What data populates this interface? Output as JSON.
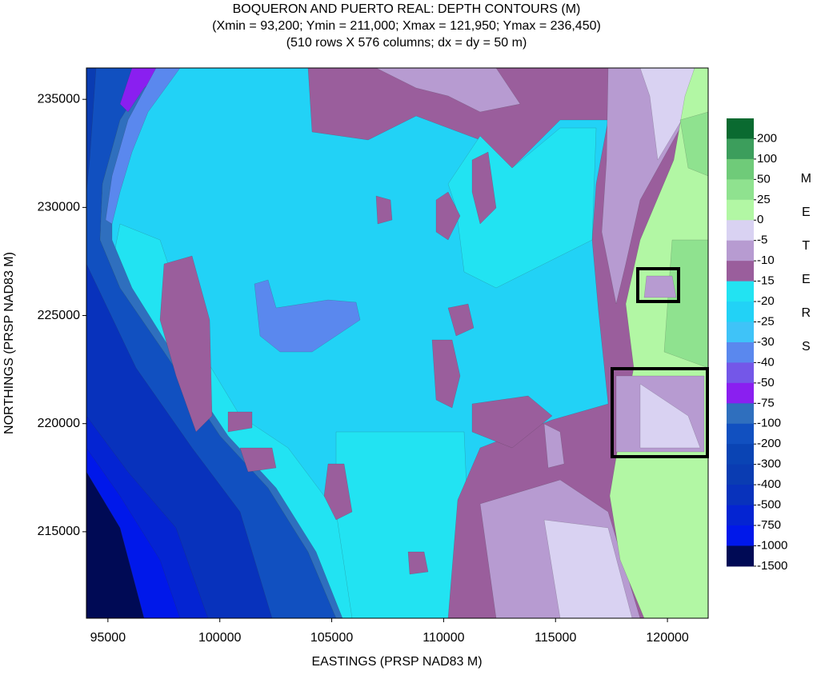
{
  "chart_data": {
    "type": "contour",
    "title": "BOQUERON AND PUERTO REAL: DEPTH CONTOURS (M)",
    "subtitle": [
      "(Xmin = 93,200; Ymin = 211,000; Xmax = 121,950; Ymax = 236,450)",
      "(510 rows X 576 columns; dx = dy = 50 m)"
    ],
    "x_label": "EASTINGS (PRSP NAD83 M)",
    "y_label": "NORTHINGS (PRSP NAD83 M)",
    "xlim": [
      94040,
      121820
    ],
    "ylim": [
      211000,
      236450
    ],
    "xticks": [
      95000,
      100000,
      105000,
      110000,
      115000,
      120000
    ],
    "yticks": [
      215000,
      220000,
      225000,
      230000,
      235000
    ],
    "colorbar": {
      "label": "METERS",
      "levels": [
        200,
        100,
        50,
        25,
        0,
        -5,
        -10,
        -15,
        -20,
        -25,
        -30,
        -40,
        -50,
        -75,
        -100,
        -200,
        -300,
        -400,
        -500,
        -750,
        -1000,
        -1500
      ],
      "colors": [
        "#0a6a30",
        "#3c9e5c",
        "#6fcb79",
        "#8fe28f",
        "#b2f7a4",
        "#d9d2f2",
        "#b79bd1",
        "#9a5e9c",
        "#22e3f2",
        "#22d2f6",
        "#3fc3f8",
        "#5a88ee",
        "#7457e8",
        "#8a1ff0",
        "#2f6fbe",
        "#1150c0",
        "#0a44b4",
        "#0a3cb2",
        "#0832bc",
        "#0424d2",
        "#0018ea",
        "#000a55"
      ]
    }
  }
}
